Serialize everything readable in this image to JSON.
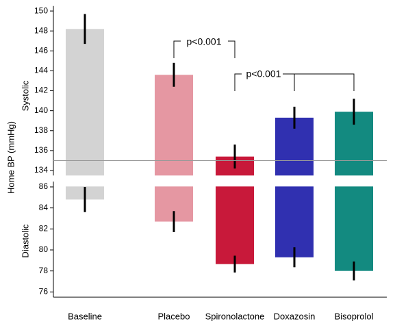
{
  "y_axis_title": "Home BP (mmHg)",
  "chart_data": [
    {
      "type": "bar",
      "ylabel": "Systolic",
      "categories": [
        "Baseline",
        "Placebo",
        "Spironolactone",
        "Doxazosin",
        "Bisoprolol"
      ],
      "values": [
        148.2,
        143.6,
        135.4,
        139.3,
        139.9
      ],
      "errors": [
        1.5,
        1.2,
        1.2,
        1.1,
        1.3
      ],
      "colors": [
        "#d3d3d3",
        "#e597a2",
        "#c8193a",
        "#3030b0",
        "#138a80"
      ],
      "ylim": [
        133.5,
        150.5
      ],
      "yticks": [
        134,
        136,
        138,
        140,
        142,
        144,
        146,
        148,
        150
      ],
      "ref_line": 135,
      "annotations": [
        "p<0.001",
        "p<0.001"
      ]
    },
    {
      "type": "bar",
      "ylabel": "Diastolic",
      "categories": [
        "Baseline",
        "Placebo",
        "Spironolactone",
        "Doxazosin",
        "Bisoprolol"
      ],
      "values": [
        84.8,
        82.7,
        78.65,
        79.3,
        78.0
      ],
      "errors": [
        1.2,
        1.0,
        0.8,
        0.95,
        0.9
      ],
      "colors": [
        "#d3d3d3",
        "#e597a2",
        "#c8193a",
        "#3030b0",
        "#138a80"
      ],
      "ylim": [
        75.5,
        86.5
      ],
      "yticks": [
        76,
        78,
        80,
        82,
        84,
        86
      ]
    }
  ]
}
